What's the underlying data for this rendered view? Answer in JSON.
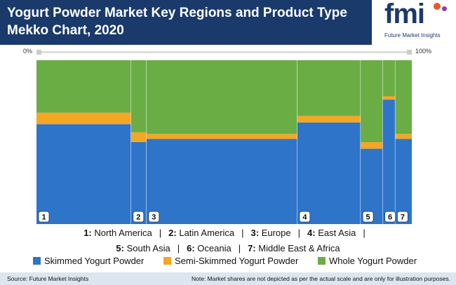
{
  "header": {
    "title": "Yogurt Powder Market Key Regions and Product Type Mekko Chart, 2020"
  },
  "logo": {
    "wordmark": "fmi",
    "caption": "Future Market Insights"
  },
  "scale": {
    "left_label": "0%",
    "right_label": "100%"
  },
  "chart_data": {
    "type": "mekko",
    "title": "Yogurt Powder Market Key Regions and Product Type Mekko Chart, 2020",
    "categories": [
      "1",
      "2",
      "3",
      "4",
      "5",
      "6",
      "7"
    ],
    "region_names": [
      "North America",
      "Latin America",
      "Europe",
      "East Asia",
      "South Asia",
      "Oceania",
      "Middle East & Africa"
    ],
    "column_widths_pct": [
      25.7,
      4.2,
      41.0,
      17.2,
      6.0,
      3.4,
      4.5
    ],
    "series": [
      {
        "name": "Skimmed Yogurt Powder",
        "values": [
          61,
          50,
          52,
          62,
          46,
          76,
          52
        ]
      },
      {
        "name": "Semi-Skimmed Yogurt Powder",
        "values": [
          7,
          6,
          3,
          4,
          4,
          2,
          3
        ]
      },
      {
        "name": "Whole Yogurt Powder",
        "values": [
          32,
          44,
          45,
          34,
          50,
          22,
          45
        ]
      }
    ],
    "colors": [
      "#2e74c9",
      "#f5a623",
      "#6aad45"
    ],
    "xlim": [
      0,
      100
    ],
    "ylim": [
      0,
      100
    ],
    "grid": false,
    "legend": "bottom"
  },
  "legend_regions": {
    "row1": [
      {
        "num": "1:",
        "name": "North America"
      },
      {
        "num": "2:",
        "name": "Latin America"
      },
      {
        "num": "3:",
        "name": "Europe"
      },
      {
        "num": "4:",
        "name": "East Asia"
      }
    ],
    "row2": [
      {
        "num": "5:",
        "name": "South Asia"
      },
      {
        "num": "6:",
        "name": "Oceania"
      },
      {
        "num": "7:",
        "name": "Middle East & Africa"
      }
    ]
  },
  "footer": {
    "source": "Source: Future Market Insights",
    "note": "Note: Market shares are not depicted as per the actual scale and are only for illustration purposes."
  }
}
